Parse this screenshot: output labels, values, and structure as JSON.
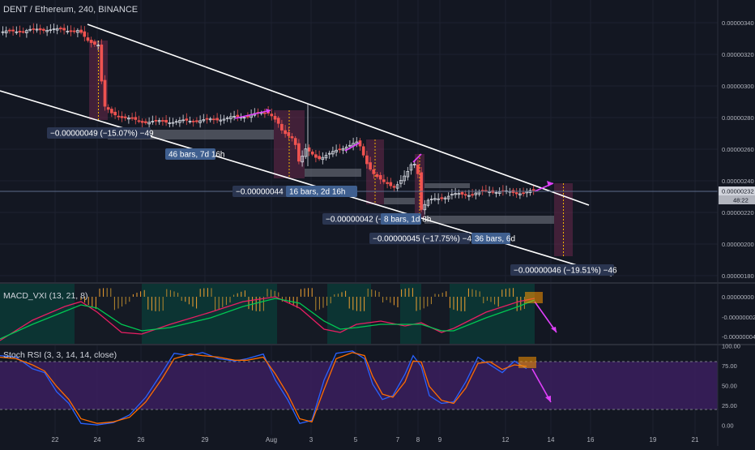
{
  "header": {
    "symbol": "DENT / Ethereum",
    "interval": "240",
    "exchange": "BINANCE"
  },
  "indicators": {
    "macd_label": "MACD_VXI (13, 21, 8)",
    "stoch_label": "Stoch RSI (3, 3, 14, 14, close)"
  },
  "price_scale": {
    "ticks": [
      "0.00000340",
      "0.00000320",
      "0.00000300",
      "0.00000280",
      "0.00000260",
      "0.00000240",
      "0.00000220",
      "0.00000200",
      "0.00000180"
    ],
    "current_price": "0.00000232",
    "countdown": "48:22"
  },
  "macd_scale": {
    "ticks": [
      "0.00000000",
      "-0.00000002",
      "-0.00000004"
    ]
  },
  "stoch_scale": {
    "ticks": [
      "100.00",
      "75.00",
      "50.00",
      "25.00",
      "0.00"
    ]
  },
  "time_axis": {
    "ticks": [
      "22",
      "24",
      "26",
      "29",
      "Aug",
      "3",
      "5",
      "7",
      "8",
      "9",
      "12",
      "14",
      "16",
      "19",
      "21"
    ]
  },
  "annotations": {
    "move1": "−0.00000049 (−15.07%) −49",
    "bars1": "46 bars, 7d 16h",
    "move2": "−0.00000044 (−15.4",
    "bars2": "16 bars, 2d 16h",
    "move3": "−0.00000042 (−",
    "bars3": "8 bars, 1d 8h",
    "move4": "−0.00000045 (−17.75%) −45",
    "bars4": "36 bars, 6d",
    "move5": "−0.00000046 (−19.51%) −46"
  },
  "colors": {
    "background": "#131722",
    "candle_up": "#e0e3eb",
    "candle_down": "#ef5350",
    "trendline": "#ffffff",
    "projection_arrow": "#e040fb",
    "stoch_k": "#2962ff",
    "stoch_d": "#ff6d00",
    "stoch_band": "#5b2a86",
    "macd_bg_teal": "#0e3b3b",
    "macd_signal": "#00a86b"
  },
  "chart_data": {
    "type": "candlestick",
    "title": "DENT / Ethereum, 240, BINANCE",
    "y_range": [
      1.7e-06,
      3.5e-06
    ],
    "x_labels": [
      "22",
      "24",
      "26",
      "29",
      "Aug",
      "3",
      "5",
      "7",
      "8",
      "9",
      "12",
      "14",
      "16",
      "19",
      "21"
    ],
    "current_price": 2.32e-06,
    "price_path": [
      [
        3.34e-06,
        3.38e-06,
        3.36e-06,
        3.34e-06,
        3.37e-06,
        3.32e-06,
        3.28e-06,
        3.15e-06
      ],
      [
        2.92e-06,
        2.8e-06,
        2.8e-06,
        2.82e-06,
        2.79e-06,
        2.81e-06,
        2.83e-06,
        2.85e-06
      ],
      [
        2.81e-06,
        2.82e-06,
        2.83e-06,
        2.84e-06,
        2.86e-06,
        2.85e-06,
        2.86e-06,
        2.87e-06
      ],
      [
        2.65e-06,
        2.48e-06,
        2.55e-06,
        2.58e-06,
        2.62e-06,
        2.6e-06,
        2.64e-06,
        2.66e-06
      ],
      [
        2.48e-06,
        2.4e-06,
        2.37e-06,
        2.44e-06,
        2.48e-06,
        2.55e-06,
        2.52e-06
      ],
      [
        2.2e-06,
        2.26e-06,
        2.29e-06,
        2.3e-06,
        2.31e-06,
        2.32e-06,
        2.33e-06,
        2.32e-06,
        2.31e-06,
        2.32e-06
      ]
    ],
    "measurements": [
      {
        "change": -4.9e-07,
        "percent": -15.07,
        "bars": 46,
        "duration": "7d 16h"
      },
      {
        "change": -4.4e-07,
        "percent": -15.4,
        "bars": 16,
        "duration": "2d 16h"
      },
      {
        "change": -4.2e-07,
        "bars": 8,
        "duration": "1d 8h"
      },
      {
        "change": -4.5e-07,
        "percent": -17.75,
        "bars": 36,
        "duration": "6d"
      },
      {
        "change": -4.6e-07,
        "percent": -19.51
      }
    ],
    "stoch_rsi": {
      "levels": [
        100,
        75,
        50,
        25,
        0
      ],
      "band": [
        20,
        80
      ]
    }
  }
}
